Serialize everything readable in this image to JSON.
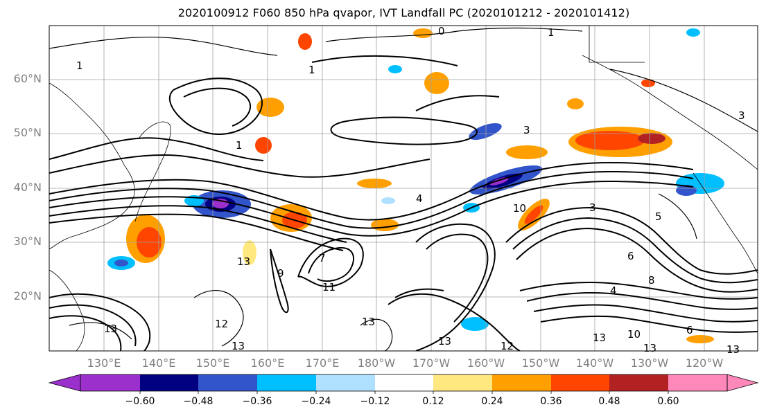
{
  "title": "2020100912 F060 850 hPa qvapor, IVT Landfall PC (2020101212 - 2020101412)",
  "lat_labels": [
    "60°N",
    "50°N",
    "40°N",
    "30°N",
    "20°N"
  ],
  "lon_labels": [
    "130°E",
    "140°E",
    "150°E",
    "160°E",
    "170°E",
    "180°W",
    "170°W",
    "160°W",
    "150°W",
    "140°W",
    "130°W",
    "120°W"
  ],
  "colorbar": {
    "colors": [
      "#9b30cc",
      "#000080",
      "#3355cc",
      "#00bfff",
      "#b0e0ff",
      "#ffffff",
      "#ffe880",
      "#ffa000",
      "#ff4500",
      "#b22222",
      "#ff88bb"
    ],
    "tick_labels": [
      "−0.60",
      "−0.48",
      "−0.36",
      "−0.24",
      "−0.12",
      "0.12",
      "0.24",
      "0.36",
      "0.48",
      "0.60"
    ]
  },
  "contour_labels": [
    "1",
    "1",
    "0",
    "1",
    "1",
    "3",
    "3",
    "3",
    "4",
    "4",
    "5",
    "6",
    "6",
    "7",
    "8",
    "9",
    "10",
    "10",
    "11",
    "12",
    "12",
    "13",
    "13",
    "13",
    "13",
    "13",
    "13",
    "13",
    "13"
  ]
}
